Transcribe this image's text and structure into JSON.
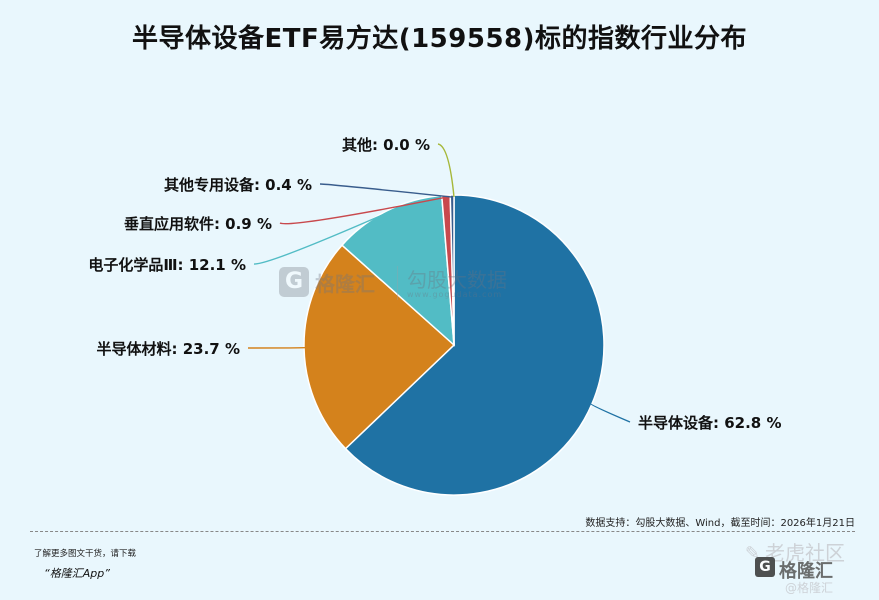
{
  "title": "半导体设备ETF易方达(159558)标的指数行业分布",
  "chart_data": {
    "type": "pie",
    "title": "半导体设备ETF易方达(159558)标的指数行业分布",
    "unit": "%",
    "slices": [
      {
        "label": "半导体设备",
        "value": 62.8,
        "value_text": "62.8 %",
        "color": "#1f72a4"
      },
      {
        "label": "半导体材料",
        "value": 23.7,
        "value_text": "23.7 %",
        "color": "#d4821c"
      },
      {
        "label": "电子化学品Ⅲ",
        "value": 12.1,
        "value_text": "12.1 %",
        "color": "#52bcc5"
      },
      {
        "label": "垂直应用软件",
        "value": 0.9,
        "value_text": "0.9 %",
        "color": "#c8494d"
      },
      {
        "label": "其他专用设备",
        "value": 0.4,
        "value_text": "0.4 %",
        "color": "#385c8c"
      },
      {
        "label": "其他",
        "value": 0.0,
        "value_text": "0.0 %",
        "color": "#a6b83a"
      }
    ]
  },
  "source_note": "数据支持：勾股大数据、Wind，截至时间：2026年1月21日",
  "footer": {
    "promo": "了解更多图文干货，请下载",
    "app": "“格隆汇App”"
  },
  "watermark": {
    "g_letter": "G",
    "brand": "格隆汇",
    "brand_url": "www.gelonghui.com",
    "sub": "勾股大数据",
    "sub_url": "www.gogudata.com",
    "corner_top": "老虎社区",
    "corner_handle": "@格隆汇"
  }
}
